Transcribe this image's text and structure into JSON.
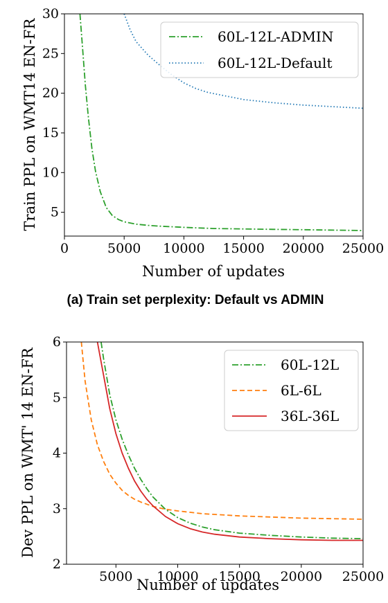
{
  "chart_data": [
    {
      "type": "line",
      "caption": "(a) Train set perplexity: Default vs ADMIN",
      "xlabel": "Number of updates",
      "ylabel": "Train PPL on WMT14 EN-FR",
      "xlim": [
        0,
        25000
      ],
      "ylim": [
        2,
        30
      ],
      "xticks": [
        0,
        5000,
        10000,
        15000,
        20000,
        25000
      ],
      "yticks": [
        5,
        10,
        15,
        20,
        25,
        30
      ],
      "grid": false,
      "legend_position": "top-right",
      "series": [
        {
          "name": "60L-12L-ADMIN",
          "color": "#2ca02c",
          "style": "dashdot",
          "x": [
            1300,
            1500,
            1750,
            2000,
            2300,
            2600,
            3000,
            3500,
            4000,
            4500,
            5000,
            6000,
            7000,
            8000,
            10000,
            12500,
            15000,
            17500,
            20000,
            22500,
            25000
          ],
          "y": [
            30,
            26,
            21,
            17,
            13,
            10.2,
            7.6,
            5.6,
            4.6,
            4.1,
            3.8,
            3.5,
            3.35,
            3.25,
            3.1,
            2.95,
            2.9,
            2.85,
            2.8,
            2.75,
            2.7
          ]
        },
        {
          "name": "60L-12L-Default",
          "color": "#1f77b4",
          "style": "dotted",
          "x": [
            5000,
            5500,
            6000,
            7000,
            8000,
            9000,
            10000,
            11000,
            12000,
            13000,
            14000,
            15000,
            17500,
            20000,
            22500,
            25000
          ],
          "y": [
            30,
            28,
            26.5,
            24.8,
            23.5,
            22.3,
            21.3,
            20.6,
            20.1,
            19.8,
            19.5,
            19.2,
            18.8,
            18.5,
            18.3,
            18.1
          ]
        }
      ]
    },
    {
      "type": "line",
      "xlabel": "Number of updates",
      "ylabel": "Dev PPL on WMT' 14 EN-FR",
      "xlim": [
        1000,
        25000
      ],
      "ylim": [
        2,
        6
      ],
      "xticks": [
        5000,
        10000,
        15000,
        20000,
        25000
      ],
      "yticks": [
        2,
        3,
        4,
        5,
        6
      ],
      "grid": false,
      "legend_position": "top-right",
      "series": [
        {
          "name": "60L-12L",
          "color": "#2ca02c",
          "style": "dashdot",
          "x": [
            3800,
            4000,
            4500,
            5000,
            5500,
            6000,
            6500,
            7000,
            7500,
            8000,
            9000,
            10000,
            11000,
            12000,
            13000,
            15000,
            17500,
            20000,
            22500,
            25000
          ],
          "y": [
            6.0,
            5.7,
            5.05,
            4.6,
            4.25,
            3.97,
            3.73,
            3.53,
            3.36,
            3.21,
            2.99,
            2.84,
            2.74,
            2.67,
            2.62,
            2.56,
            2.52,
            2.49,
            2.47,
            2.46
          ]
        },
        {
          "name": "6L-6L",
          "color": "#ff7f0e",
          "style": "dashed",
          "x": [
            2200,
            2500,
            3000,
            3500,
            4000,
            4500,
            5000,
            5500,
            6000,
            6500,
            7000,
            8000,
            9000,
            10000,
            12000,
            15000,
            17500,
            20000,
            22500,
            25000
          ],
          "y": [
            6.0,
            5.3,
            4.6,
            4.15,
            3.85,
            3.62,
            3.46,
            3.33,
            3.24,
            3.17,
            3.12,
            3.04,
            2.99,
            2.96,
            2.91,
            2.87,
            2.85,
            2.83,
            2.82,
            2.81
          ]
        },
        {
          "name": "36L-36L",
          "color": "#d62728",
          "style": "solid",
          "x": [
            3500,
            4000,
            4500,
            5000,
            5500,
            6000,
            6500,
            7000,
            7500,
            8000,
            9000,
            10000,
            11000,
            12000,
            13000,
            15000,
            17500,
            20000,
            22500,
            25000
          ],
          "y": [
            6.0,
            5.4,
            4.8,
            4.35,
            4.0,
            3.73,
            3.5,
            3.32,
            3.17,
            3.05,
            2.86,
            2.73,
            2.64,
            2.58,
            2.54,
            2.49,
            2.46,
            2.44,
            2.43,
            2.43
          ]
        }
      ]
    }
  ]
}
